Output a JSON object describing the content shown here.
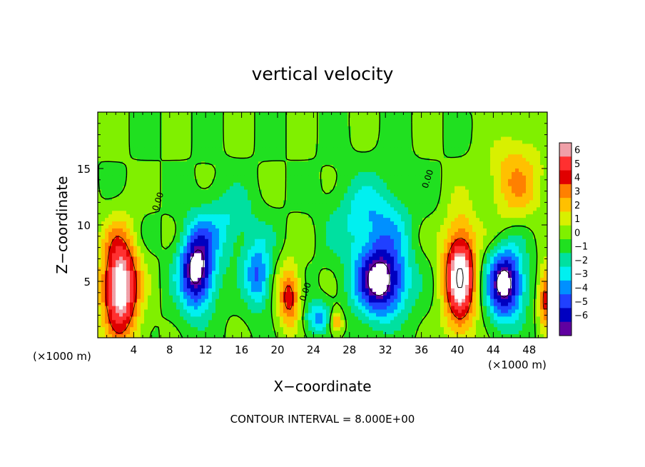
{
  "chart_data": {
    "type": "heatmap",
    "title": "vertical velocity",
    "xlabel": "X−coordinate",
    "ylabel": "Z−coordinate",
    "x_unit_left": "(×1000 m)",
    "x_unit_right": "(×1000 m)",
    "x_ticks": [
      "4",
      "8",
      "12",
      "16",
      "20",
      "24",
      "28",
      "32",
      "36",
      "40",
      "44",
      "48"
    ],
    "y_ticks": [
      "5",
      "10",
      "15"
    ],
    "xlim": [
      0,
      50
    ],
    "ylim": [
      0,
      20
    ],
    "contour_interval_text": "CONTOUR INTERVAL = 8.000E+00",
    "contour_labels": [
      {
        "text": "0.00",
        "x": 7.0,
        "y": 12.0,
        "angle": -72
      },
      {
        "text": "0.00",
        "x": 23.4,
        "y": 4.0,
        "angle": -72
      },
      {
        "text": "0.00",
        "x": 37.0,
        "y": 14.0,
        "angle": -72
      }
    ],
    "colorbar": {
      "ticks": [
        "6",
        "5",
        "4",
        "3",
        "2",
        "1",
        "0",
        "−1",
        "−2",
        "−3",
        "−4",
        "−5",
        "−6"
      ],
      "colors": [
        "#f0a0a8",
        "#ff3030",
        "#e00000",
        "#ff8000",
        "#ffc000",
        "#d8f000",
        "#80f000",
        "#20e020",
        "#00e0a0",
        "#00f0f0",
        "#0090ff",
        "#2040ff",
        "#0000c0",
        "#6000a0"
      ]
    },
    "features": [
      {
        "kind": "updraft",
        "x": 2.5,
        "z": 4.5,
        "rx": 2.6,
        "rz": 6.0,
        "peak": 8
      },
      {
        "kind": "updraft",
        "x": 21.3,
        "z": 3.6,
        "rx": 1.6,
        "rz": 3.5,
        "peak": 4.8
      },
      {
        "kind": "updraft",
        "x": 26.5,
        "z": 1.4,
        "rx": 0.9,
        "rz": 1.3,
        "peak": 3.8
      },
      {
        "kind": "updraft",
        "x": 40.3,
        "z": 5.5,
        "rx": 2.3,
        "rz": 6.0,
        "peak": 8
      },
      {
        "kind": "updraft",
        "x": 49.8,
        "z": 3.5,
        "rx": 0.9,
        "rz": 3.5,
        "peak": 5
      },
      {
        "kind": "updraft",
        "x": 46.5,
        "z": 14.0,
        "rx": 3.8,
        "rz": 4.8,
        "peak": 3
      },
      {
        "kind": "downdraft",
        "x": 11.0,
        "z": 6.0,
        "rx": 2.5,
        "rz": 4.5,
        "peak": -7.5
      },
      {
        "kind": "downdraft",
        "x": 17.8,
        "z": 5.5,
        "rx": 1.8,
        "rz": 3.5,
        "peak": -4.3
      },
      {
        "kind": "downdraft",
        "x": 31.5,
        "z": 5.0,
        "rx": 3.6,
        "rz": 4.0,
        "peak": -7.5
      },
      {
        "kind": "downdraft",
        "x": 45.3,
        "z": 4.8,
        "rx": 2.6,
        "rz": 4.0,
        "peak": -7.5
      },
      {
        "kind": "downdraft",
        "x": 30.5,
        "z": 10.5,
        "rx": 5.0,
        "rz": 4.5,
        "peak": -3
      },
      {
        "kind": "downdraft",
        "x": 14.5,
        "z": 10.0,
        "rx": 4.0,
        "rz": 4.0,
        "peak": -2.2
      },
      {
        "kind": "downdraft",
        "x": 24.5,
        "z": 1.8,
        "rx": 1.8,
        "rz": 1.8,
        "peak": -3.5
      }
    ]
  }
}
